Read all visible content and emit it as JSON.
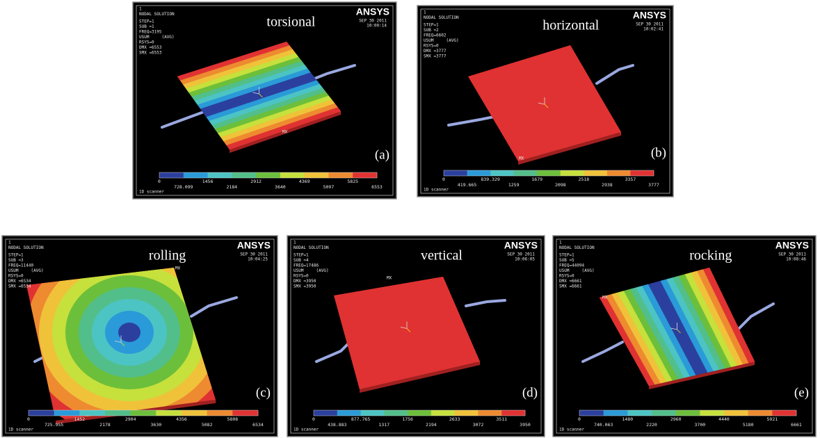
{
  "panels": [
    {
      "title": "torsional",
      "label": "(a)",
      "logo": "ANSYS",
      "date": "SEP 30 2011",
      "time": "10:00:14",
      "mx": "MX",
      "footer": "1D scanner",
      "header": [
        "1",
        "NODAL SOLUTION",
        "STEP=1",
        "SUB =1",
        "FREQ=3195",
        "USUM     (AVG)",
        "RSYS=0",
        "DMX =6553",
        "SMX =6553"
      ],
      "scale": [
        "0",
        "728.099",
        "1456",
        "2184",
        "2912",
        "3640",
        "4369",
        "5097",
        "5825",
        "6553"
      ]
    },
    {
      "title": "horizontal",
      "label": "(b)",
      "logo": "ANSYS",
      "date": "SEP 30 2011",
      "time": "10:02:41",
      "mx": "MX",
      "footer": "1D scanner",
      "header": [
        "1",
        "NODAL SOLUTION",
        "STEP=1",
        "SUB =2",
        "FREQ=6602",
        "USUM     (AVG)",
        "RSYS=0",
        "DMX =3777",
        "SMX =3777"
      ],
      "scale": [
        "0",
        "419.665",
        "839.329",
        "1259",
        "1679",
        "2098",
        "2518",
        "2938",
        "3357",
        "3777"
      ]
    },
    {
      "title": "rolling",
      "label": "(c)",
      "logo": "ANSYS",
      "date": "SEP 30 2011",
      "time": "10:04:25",
      "mx": "MX",
      "footer": "1D scanner",
      "header": [
        "1",
        "NODAL SOLUTION",
        "STEP=1",
        "SUB =3",
        "FREQ=11440",
        "USUM     (AVG)",
        "RSYS=0",
        "DMX =6534",
        "SMX =6534"
      ],
      "scale": [
        "0",
        "725.955",
        "1452",
        "2178",
        "2904",
        "3630",
        "4356",
        "5082",
        "5808",
        "6534"
      ]
    },
    {
      "title": "vertical",
      "label": "(d)",
      "logo": "ANSYS",
      "date": "SEP 30 2011",
      "time": "10:06:05",
      "mx": "MX",
      "footer": "1D scanner",
      "header": [
        "1",
        "NODAL SOLUTION",
        "STEP=1",
        "SUB =4",
        "FREQ=17486",
        "USUM     (AVG)",
        "RSYS=0",
        "DMX =3950",
        "SMX =3950"
      ],
      "scale": [
        "0",
        "438.883",
        "877.765",
        "1317",
        "1756",
        "2194",
        "2633",
        "3072",
        "3511",
        "3950"
      ]
    },
    {
      "title": "rocking",
      "label": "(e)",
      "logo": "ANSYS",
      "date": "SEP 30 2011",
      "time": "10:08:46",
      "mx": "MX",
      "footer": "1D scanner",
      "header": [
        "1",
        "NODAL SOLUTION",
        "STEP=1",
        "SUB =5",
        "FREQ=44094",
        "USUM     (AVG)",
        "RSYS=0",
        "DMX =6661",
        "SMX =6661"
      ],
      "scale": [
        "0",
        "740.063",
        "1480",
        "2220",
        "2960",
        "3700",
        "4440",
        "5180",
        "5921",
        "6661"
      ]
    }
  ]
}
